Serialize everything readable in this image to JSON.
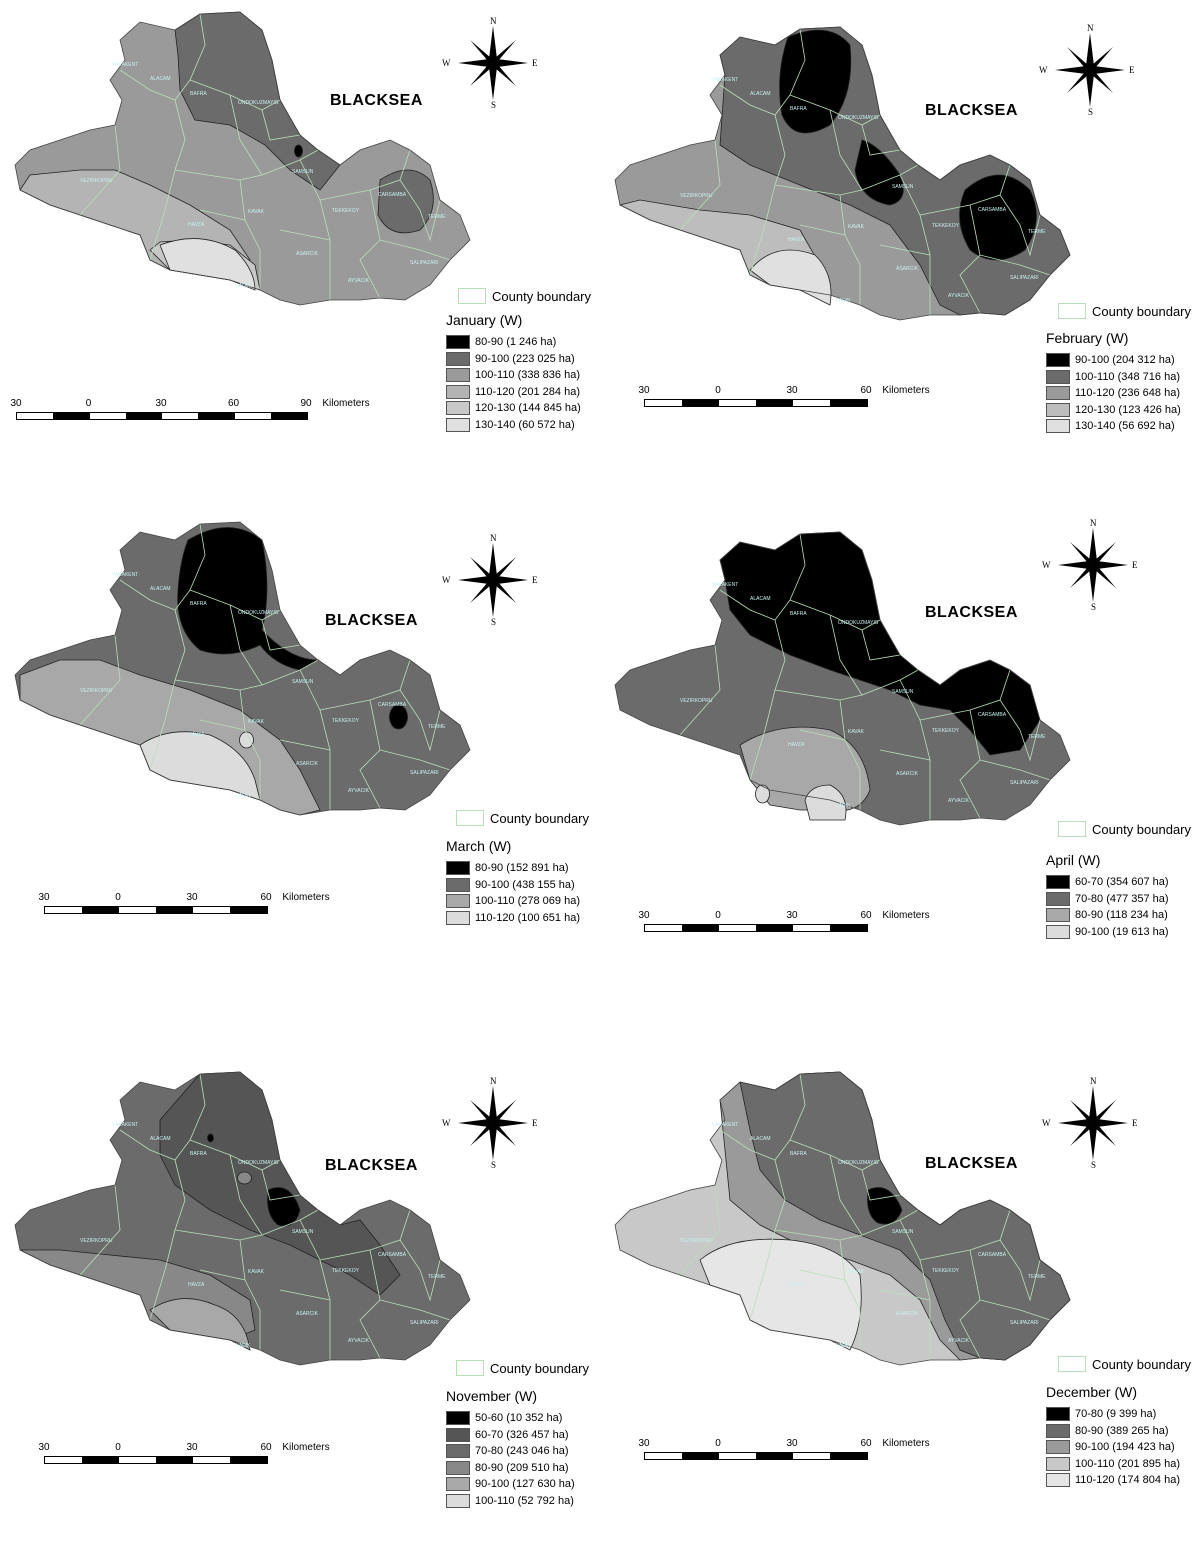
{
  "sea_label": "BLACKSEA",
  "county_boundary_label": "County boundary",
  "compass": {
    "n": "N",
    "s": "S",
    "e": "E",
    "w": "W"
  },
  "place_names": [
    "YAKAKENT",
    "ALACAM",
    "BAFRA",
    "ONDOKUZMAYIS",
    "SAMSUN",
    "CARSAMBA",
    "TERME",
    "VEZIRKOPRU",
    "HAVZA",
    "KAVAK",
    "TEKKEKOY",
    "ASARCIK",
    "SALIPAZARI",
    "AYVACIK",
    "LADIK"
  ],
  "colors": {
    "black": "#000000",
    "dark": "#6b6b6b",
    "mid": "#9a9a9a",
    "light": "#bdbdbd",
    "lighter": "#d0d0d0",
    "lightest": "#e2e2e2",
    "county_line": "#b8e0b8"
  },
  "maps": [
    {
      "title": "January (W)",
      "scale": {
        "ticks": [
          "30",
          "0",
          "30",
          "60",
          "90"
        ],
        "unit": "Kilometers"
      },
      "classes": [
        {
          "label": "80-90 (1 246 ha)",
          "color": "#000000"
        },
        {
          "label": "90-100 (223 025 ha)",
          "color": "#6b6b6b"
        },
        {
          "label": "100-110 (338 836 ha)",
          "color": "#9a9a9a"
        },
        {
          "label": "110-120 (201 284 ha)",
          "color": "#b4b4b4"
        },
        {
          "label": "120-130 (144 845 ha)",
          "color": "#c8c8c8"
        },
        {
          "label": "130-140 (60 572 ha)",
          "color": "#e0e0e0"
        }
      ]
    },
    {
      "title": "February (W)",
      "scale": {
        "ticks": [
          "30",
          "0",
          "30",
          "60"
        ],
        "unit": "Kilometers"
      },
      "classes": [
        {
          "label": "90-100 (204 312 ha)",
          "color": "#000000"
        },
        {
          "label": "100-110 (348 716 ha)",
          "color": "#6b6b6b"
        },
        {
          "label": "110-120 (236 648 ha)",
          "color": "#9a9a9a"
        },
        {
          "label": "120-130 (123 426 ha)",
          "color": "#bdbdbd"
        },
        {
          "label": "130-140 (56 692 ha)",
          "color": "#e0e0e0"
        }
      ]
    },
    {
      "title": "March (W)",
      "scale": {
        "ticks": [
          "30",
          "0",
          "30",
          "60"
        ],
        "unit": "Kilometers"
      },
      "classes": [
        {
          "label": "80-90 (152 891 ha)",
          "color": "#000000"
        },
        {
          "label": "90-100 (438 155 ha)",
          "color": "#6b6b6b"
        },
        {
          "label": "100-110 (278 069 ha)",
          "color": "#a8a8a8"
        },
        {
          "label": "110-120 (100 651 ha)",
          "color": "#dcdcdc"
        }
      ]
    },
    {
      "title": "April (W)",
      "scale": {
        "ticks": [
          "30",
          "0",
          "30",
          "60"
        ],
        "unit": "Kilometers"
      },
      "classes": [
        {
          "label": "60-70 (354 607 ha)",
          "color": "#000000"
        },
        {
          "label": "70-80 (477 357 ha)",
          "color": "#6b6b6b"
        },
        {
          "label": "80-90 (118 234 ha)",
          "color": "#a8a8a8"
        },
        {
          "label": "90-100 (19 613 ha)",
          "color": "#dcdcdc"
        }
      ]
    },
    {
      "title": "November (W)",
      "scale": {
        "ticks": [
          "30",
          "0",
          "30",
          "60"
        ],
        "unit": "Kilometers"
      },
      "classes": [
        {
          "label": "50-60 (10 352 ha)",
          "color": "#000000"
        },
        {
          "label": "60-70 (326 457 ha)",
          "color": "#555555"
        },
        {
          "label": "70-80 (243 046 ha)",
          "color": "#6b6b6b"
        },
        {
          "label": "80-90 (209 510 ha)",
          "color": "#888888"
        },
        {
          "label": "90-100 (127 630 ha)",
          "color": "#a8a8a8"
        },
        {
          "label": "100-110 (52 792 ha)",
          "color": "#dcdcdc"
        }
      ]
    },
    {
      "title": "December (W)",
      "scale": {
        "ticks": [
          "30",
          "0",
          "30",
          "60"
        ],
        "unit": "Kilometers"
      },
      "classes": [
        {
          "label": "70-80 (9 399 ha)",
          "color": "#000000"
        },
        {
          "label": "80-90 (389 265 ha)",
          "color": "#6b6b6b"
        },
        {
          "label": "90-100 (194 423 ha)",
          "color": "#9a9a9a"
        },
        {
          "label": "100-110 (201 895 ha)",
          "color": "#c8c8c8"
        },
        {
          "label": "110-120 (174 804 ha)",
          "color": "#e6e6e6"
        }
      ]
    }
  ]
}
